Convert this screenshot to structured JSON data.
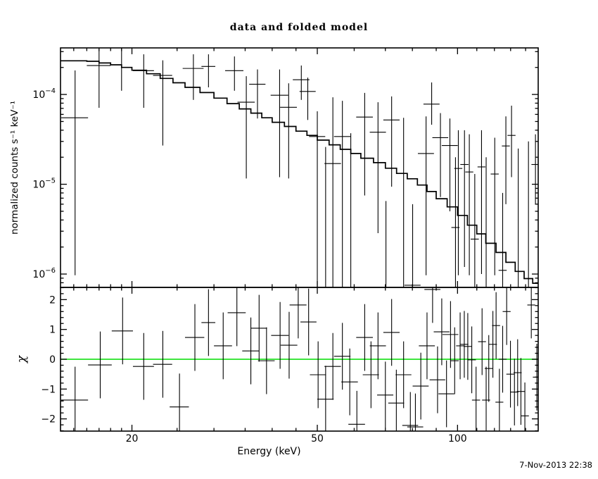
{
  "title": "data and folded model",
  "timestamp": "7-Nov-2013 22:38",
  "labels": {
    "x": "Energy (keV)",
    "y_top": "normalized counts s⁻¹ keV⁻¹",
    "y_bottom": "χ"
  },
  "colors": {
    "foreground": "#000000",
    "background": "#ffffff",
    "zero_line": "#00dd00"
  },
  "chart_data": {
    "type": "line",
    "title": "data and folded model",
    "xlabel": "Energy (keV)",
    "ylabel_top": "normalized counts s⁻¹ keV⁻¹",
    "ylabel_bottom": "χ",
    "x_scale": "log",
    "x_range_kev": [
      14.05,
      149
    ],
    "x_major_ticks": [
      20,
      50,
      100
    ],
    "x_minor_ticks": [
      15,
      16,
      17,
      18,
      19,
      25,
      30,
      35,
      40,
      45,
      60,
      70,
      80,
      90,
      110,
      120,
      130,
      140
    ],
    "top_panel": {
      "y_scale": "log",
      "y_range": [
        7.1e-07,
        0.00033
      ],
      "y_major_ticks_exp": [
        -4,
        -5,
        -6
      ],
      "model": {
        "e": [
          14,
          15,
          16,
          17,
          18,
          19,
          20,
          21.5,
          23,
          24.5,
          26,
          28,
          30,
          32,
          34,
          36,
          38,
          40,
          42.5,
          45,
          47.5,
          50,
          53,
          56,
          59,
          62,
          66,
          70,
          74,
          78,
          82,
          86,
          90,
          95,
          100,
          105,
          110,
          115,
          121,
          127,
          133,
          139,
          145,
          150
        ],
        "v": [
          0.000237,
          0.000237,
          0.000234,
          0.000224,
          0.000214,
          0.0002,
          0.000186,
          0.00017,
          0.000151,
          0.000135,
          0.00012,
          0.000105,
          9.1e-05,
          7.9e-05,
          6.9e-05,
          6.2e-05,
          5.5e-05,
          4.9e-05,
          4.4e-05,
          3.9e-05,
          3.5e-05,
          3.1e-05,
          2.75e-05,
          2.45e-05,
          2.2e-05,
          1.95e-05,
          1.74e-05,
          1.51e-05,
          1.32e-05,
          1.15e-05,
          9.8e-06,
          8.3e-06,
          6.9e-06,
          5.6e-06,
          4.5e-06,
          3.5e-06,
          2.8e-06,
          2.2e-06,
          1.74e-06,
          1.35e-06,
          1.07e-06,
          8.9e-07,
          7.9e-07,
          8.5e-07
        ]
      },
      "points_format": [
        "energy_keV",
        "half_width_keV",
        "value",
        "err_low",
        "err_high"
      ],
      "points": [
        [
          15.1,
          1.0,
          5.5e-05,
          9.7e-07,
          0.000185
        ],
        [
          17.0,
          1.0,
          0.00021,
          7.1e-05,
          0.00032
        ],
        [
          19.0,
          1.0,
          0.00033,
          0.00011,
          0.0005
        ],
        [
          21.2,
          1.1,
          0.000184,
          7.1e-05,
          0.00028
        ],
        [
          23.3,
          1.1,
          0.000163,
          2.7e-05,
          0.00024
        ],
        [
          27.1,
          1.4,
          0.000195,
          8.7e-05,
          0.00028
        ],
        [
          29.2,
          1.0,
          0.000205,
          0.00012,
          0.00028
        ],
        [
          33.2,
          1.5,
          0.000184,
          0.00011,
          0.000265
        ],
        [
          35.2,
          1.5,
          8.2e-05,
          1.16e-05,
          0.00016
        ],
        [
          37.2,
          1.5,
          0.00013,
          5.4e-05,
          0.00019
        ],
        [
          41.5,
          1.8,
          9.8e-05,
          1.2e-05,
          0.00019
        ],
        [
          43.4,
          1.8,
          7.2e-05,
          1.16e-05,
          0.000133
        ],
        [
          46.2,
          1.9,
          0.000146,
          8.7e-05,
          0.00021
        ],
        [
          47.7,
          1.9,
          0.000108,
          5.2e-05,
          0.000154
        ],
        [
          50.0,
          2.0,
          3.4e-05,
          5e-07,
          6.5e-05
        ],
        [
          52.1,
          2.1,
          4e-08,
          1e-08,
          2.6e-05
        ],
        [
          54.0,
          2.2,
          1.7e-05,
          5e-07,
          9.3e-05
        ],
        [
          56.6,
          2.3,
          3.4e-05,
          5e-07,
          8.5e-05
        ],
        [
          59.0,
          2.4,
          4e-08,
          1e-08,
          3.7e-05
        ],
        [
          63.2,
          2.6,
          5.6e-05,
          7.5e-06,
          0.000104
        ],
        [
          67.5,
          2.7,
          3.8e-05,
          2.85e-06,
          8.2e-05
        ],
        [
          70.2,
          2.8,
          4e-08,
          1e-08,
          6.5e-06
        ],
        [
          72.2,
          2.9,
          5.2e-05,
          9.4e-06,
          9.5e-05
        ],
        [
          76.6,
          3.0,
          4e-08,
          1e-08,
          5.5e-05
        ],
        [
          80.1,
          3.2,
          7.5e-07,
          5e-08,
          6e-06
        ],
        [
          85.6,
          3.4,
          2.2e-05,
          9.7e-07,
          5.7e-05
        ],
        [
          88.0,
          3.5,
          7.8e-05,
          4.6e-05,
          0.000136
        ],
        [
          91.9,
          3.6,
          3.3e-05,
          7.2e-06,
          6.2e-05
        ],
        [
          96.3,
          3.8,
          2.7e-05,
          5e-06,
          5.4e-05
        ],
        [
          99.0,
          2.0,
          3.3e-06,
          5e-08,
          2e-05
        ],
        [
          100.4,
          2.0,
          1.5e-05,
          9.7e-07,
          4e-05
        ],
        [
          103.5,
          2.1,
          1.66e-05,
          1.2e-06,
          4e-05
        ],
        [
          106.0,
          2.1,
          1.37e-05,
          9.7e-07,
          3.6e-05
        ],
        [
          108.9,
          2.2,
          2.45e-06,
          5e-08,
          1.3e-05
        ],
        [
          112.6,
          2.2,
          1.56e-05,
          1e-06,
          4e-05
        ],
        [
          115.2,
          2.3,
          4e-08,
          1e-08,
          2e-05
        ],
        [
          120.2,
          2.4,
          1.3e-05,
          9.7e-07,
          3.3e-05
        ],
        [
          125.0,
          2.5,
          1.1e-06,
          5e-08,
          8e-06
        ],
        [
          127.0,
          2.5,
          2.67e-05,
          6e-06,
          5.7e-05
        ],
        [
          130.6,
          2.6,
          3.5e-05,
          1.2e-05,
          7.5e-05
        ],
        [
          135.0,
          2.7,
          4e-08,
          1e-08,
          2.5e-05
        ],
        [
          142.0,
          2.8,
          4e-08,
          1e-08,
          3e-05
        ],
        [
          147.0,
          2.9,
          1.66e-05,
          6e-06,
          3.6e-05
        ]
      ]
    },
    "bottom_panel": {
      "y_scale": "linear",
      "y_range": [
        -2.41,
        2.41
      ],
      "y_major_ticks": [
        -2,
        -1,
        0,
        1,
        2
      ],
      "y_minor_step": 0.2,
      "zero_line": 0,
      "sigma": 1.12,
      "points_format": [
        "energy_keV",
        "half_width_keV",
        "chi"
      ],
      "points": [
        [
          15.1,
          1.0,
          -1.37
        ],
        [
          17.1,
          1.0,
          -0.19
        ],
        [
          19.1,
          1.0,
          0.95
        ],
        [
          21.2,
          1.1,
          -0.24
        ],
        [
          23.3,
          1.1,
          -0.17
        ],
        [
          25.3,
          1.2,
          -1.6
        ],
        [
          27.3,
          1.3,
          0.73
        ],
        [
          29.2,
          1.0,
          1.23
        ],
        [
          31.4,
          1.4,
          0.45
        ],
        [
          33.6,
          1.5,
          1.56
        ],
        [
          36.0,
          1.5,
          0.28
        ],
        [
          37.5,
          1.5,
          1.04
        ],
        [
          38.9,
          1.6,
          -0.05
        ],
        [
          41.6,
          1.8,
          0.8
        ],
        [
          43.5,
          1.8,
          0.47
        ],
        [
          45.5,
          1.9,
          1.82
        ],
        [
          47.9,
          1.9,
          1.25
        ],
        [
          50.2,
          2.0,
          -0.52
        ],
        [
          52.1,
          2.1,
          -1.34
        ],
        [
          54.0,
          2.2,
          -0.24
        ],
        [
          56.6,
          2.3,
          0.1
        ],
        [
          58.7,
          2.4,
          -0.76
        ],
        [
          60.8,
          2.5,
          -2.18
        ],
        [
          63.2,
          2.6,
          0.73
        ],
        [
          65.2,
          2.6,
          -0.52
        ],
        [
          67.5,
          2.7,
          0.45
        ],
        [
          70.0,
          2.8,
          -1.2
        ],
        [
          72.2,
          2.9,
          0.9
        ],
        [
          73.9,
          2.9,
          -1.47
        ],
        [
          76.6,
          3.0,
          -0.52
        ],
        [
          79.2,
          3.1,
          -2.22
        ],
        [
          81.2,
          3.2,
          -2.27
        ],
        [
          83.4,
          3.3,
          -0.9
        ],
        [
          86.0,
          3.4,
          0.45
        ],
        [
          88.4,
          3.5,
          2.34
        ],
        [
          90.6,
          3.5,
          -0.69
        ],
        [
          92.5,
          3.6,
          0.92
        ],
        [
          94.7,
          3.7,
          -1.16
        ],
        [
          96.6,
          3.8,
          0.83
        ],
        [
          98.6,
          2.0,
          -0.05
        ],
        [
          101.3,
          2.0,
          0.45
        ],
        [
          103.4,
          2.1,
          0.5
        ],
        [
          105.2,
          2.1,
          0.43
        ],
        [
          107.3,
          2.2,
          -0.02
        ],
        [
          109.6,
          2.2,
          -1.37
        ],
        [
          112.9,
          2.2,
          0.59
        ],
        [
          115.2,
          2.3,
          -1.37
        ],
        [
          116.7,
          2.3,
          -0.31
        ],
        [
          119.1,
          2.4,
          0.5
        ],
        [
          121.0,
          2.4,
          1.13
        ],
        [
          123.0,
          2.4,
          -1.44
        ],
        [
          125.0,
          2.5,
          0.0
        ],
        [
          127.5,
          2.5,
          1.6
        ],
        [
          129.9,
          2.6,
          -0.5
        ],
        [
          132.5,
          2.6,
          -1.1
        ],
        [
          134.6,
          2.7,
          -0.45
        ],
        [
          136.8,
          2.7,
          -1.08
        ],
        [
          139.5,
          2.8,
          -1.9
        ],
        [
          144.0,
          2.8,
          1.82
        ],
        [
          148.0,
          2.9,
          -0.6
        ]
      ]
    }
  }
}
